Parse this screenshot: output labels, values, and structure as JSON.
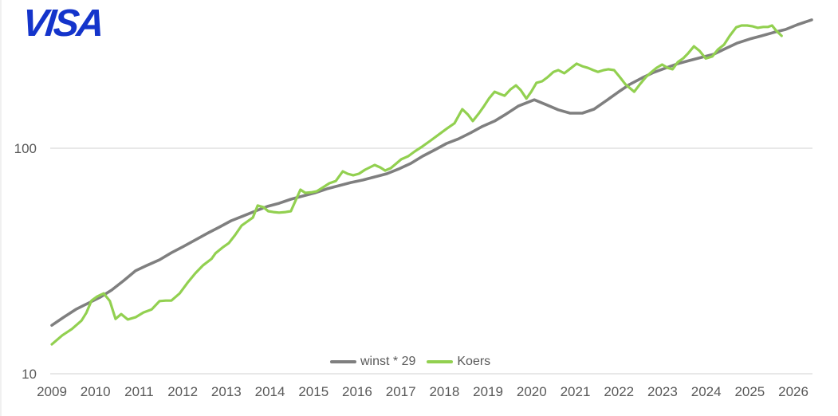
{
  "logo": {
    "text": "VISA",
    "color": "#1434CB"
  },
  "colors": {
    "grid": "#d9d9d9",
    "axis_text": "#595959",
    "winst_line": "#7f7f7f",
    "koers_line": "#92d050"
  },
  "legend": {
    "position": "bottom-center"
  },
  "chart_data": {
    "type": "line",
    "title": "",
    "xlabel": "",
    "ylabel": "",
    "y_axis": {
      "scale": "log",
      "ticks": [
        100,
        10
      ],
      "range": [
        10,
        400
      ]
    },
    "x_axis": {
      "ticks": [
        2009,
        2010,
        2011,
        2012,
        2013,
        2014,
        2015,
        2016,
        2017,
        2018,
        2019,
        2020,
        2021,
        2022,
        2023,
        2024,
        2025,
        2026
      ],
      "range": [
        2009,
        2026.5
      ]
    },
    "grid": "horizontal",
    "series": [
      {
        "name": "winst * 29",
        "color": "#7f7f7f",
        "x": [
          2009.0,
          2009.27,
          2009.55,
          2009.82,
          2010.1,
          2010.37,
          2010.65,
          2010.92,
          2011.19,
          2011.47,
          2011.74,
          2012.02,
          2012.29,
          2012.56,
          2012.84,
          2013.11,
          2013.39,
          2013.66,
          2013.94,
          2014.21,
          2014.48,
          2014.76,
          2015.03,
          2015.31,
          2015.58,
          2015.86,
          2016.13,
          2016.4,
          2016.68,
          2016.95,
          2017.23,
          2017.5,
          2017.78,
          2018.05,
          2018.32,
          2018.6,
          2018.87,
          2019.15,
          2019.42,
          2019.7,
          2020.06,
          2020.33,
          2020.61,
          2020.88,
          2021.16,
          2021.43,
          2021.7,
          2021.98,
          2022.25,
          2022.53,
          2022.8,
          2023.08,
          2023.35,
          2023.62,
          2023.9,
          2024.17,
          2024.45,
          2024.72,
          2025.0,
          2025.27,
          2025.54,
          2025.82,
          2026.09,
          2026.42
        ],
        "values": [
          16.4,
          17.8,
          19.3,
          20.5,
          21.8,
          23.5,
          25.9,
          28.6,
          30.3,
          32.0,
          34.4,
          36.7,
          39.2,
          41.9,
          44.7,
          47.7,
          50.1,
          52.6,
          55.2,
          57.0,
          59.4,
          61.4,
          63.4,
          66.1,
          68.2,
          70.5,
          72.3,
          74.6,
          77.1,
          80.9,
          85.7,
          92.2,
          98.4,
          105,
          110,
          117,
          125,
          132,
          142,
          154,
          164,
          156,
          148,
          143,
          143,
          149,
          162,
          177,
          192,
          205,
          217,
          227,
          237,
          245,
          253,
          261,
          277,
          293,
          305,
          315,
          326,
          336,
          353,
          371
        ]
      },
      {
        "name": "Koers",
        "color": "#92d050",
        "x": [
          2009.0,
          2009.24,
          2009.46,
          2009.68,
          2009.79,
          2009.91,
          2010.04,
          2010.19,
          2010.33,
          2010.46,
          2010.59,
          2010.74,
          2010.92,
          2011.1,
          2011.29,
          2011.47,
          2011.61,
          2011.74,
          2011.93,
          2012.11,
          2012.29,
          2012.47,
          2012.66,
          2012.75,
          2012.93,
          2013.06,
          2013.2,
          2013.35,
          2013.48,
          2013.61,
          2013.72,
          2013.85,
          2013.96,
          2014.08,
          2014.21,
          2014.36,
          2014.48,
          2014.7,
          2014.81,
          2014.94,
          2015.07,
          2015.22,
          2015.36,
          2015.51,
          2015.67,
          2015.78,
          2015.91,
          2016.04,
          2016.18,
          2016.4,
          2016.53,
          2016.64,
          2016.77,
          2016.9,
          2017.01,
          2017.17,
          2017.32,
          2017.5,
          2017.68,
          2017.87,
          2018.05,
          2018.23,
          2018.41,
          2018.54,
          2018.65,
          2018.78,
          2018.91,
          2019.02,
          2019.15,
          2019.27,
          2019.38,
          2019.51,
          2019.64,
          2019.75,
          2019.88,
          2019.99,
          2020.11,
          2020.24,
          2020.37,
          2020.5,
          2020.61,
          2020.75,
          2020.88,
          2021.03,
          2021.16,
          2021.29,
          2021.41,
          2021.52,
          2021.65,
          2021.76,
          2021.89,
          2022.02,
          2022.15,
          2022.35,
          2022.49,
          2022.62,
          2022.75,
          2022.86,
          2022.99,
          2023.12,
          2023.23,
          2023.35,
          2023.48,
          2023.59,
          2023.72,
          2023.85,
          2023.99,
          2024.14,
          2024.27,
          2024.41,
          2024.54,
          2024.69,
          2024.81,
          2024.94,
          2025.07,
          2025.18,
          2025.31,
          2025.42,
          2025.51,
          2025.6,
          2025.73
        ],
        "values": [
          13.5,
          14.8,
          15.8,
          17.2,
          18.6,
          21.1,
          22.0,
          22.7,
          21.0,
          17.5,
          18.4,
          17.4,
          17.8,
          18.7,
          19.3,
          21.0,
          21.1,
          21.1,
          22.7,
          25.3,
          27.9,
          30.3,
          32.3,
          34.2,
          36.5,
          38.0,
          41.2,
          45.4,
          47.3,
          49.3,
          55.7,
          54.8,
          52.6,
          52.1,
          51.8,
          52.1,
          52.6,
          65.5,
          63.4,
          63.7,
          64.4,
          67.1,
          69.9,
          71.6,
          79.0,
          77.1,
          75.9,
          77.1,
          80.3,
          84.3,
          82.2,
          79.6,
          81.6,
          85.7,
          89.3,
          92.2,
          96.8,
          102,
          108,
          115,
          122,
          129,
          149,
          141,
          132,
          142,
          154,
          166,
          178,
          174,
          171,
          182,
          190,
          181,
          166,
          178,
          195,
          198,
          207,
          218,
          222,
          215,
          225,
          237,
          231,
          227,
          222,
          218,
          222,
          224,
          222,
          207,
          192,
          178,
          193,
          207,
          218,
          227,
          235,
          227,
          224,
          241,
          251,
          264,
          283,
          270,
          250,
          255,
          274,
          288,
          315,
          344,
          350,
          350,
          347,
          342,
          345,
          345,
          350,
          333,
          315
        ]
      }
    ]
  }
}
